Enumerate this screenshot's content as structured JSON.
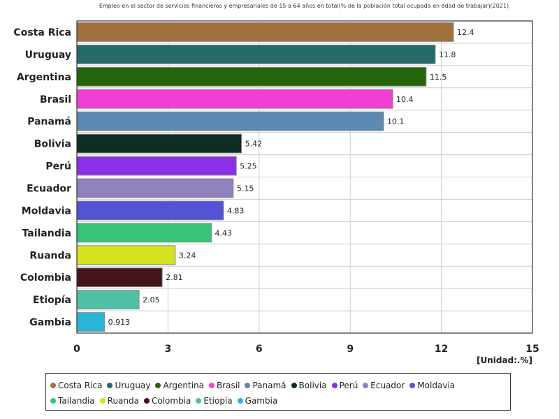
{
  "chart_data": {
    "type": "bar",
    "orientation": "horizontal",
    "title": "Empleo en el sector de servicios financieros y empresariales de 15 a 64 años en total(% de la población total ocupada en edad de trabajar)(2021)",
    "unit": "[Unidad:.%]",
    "xlim": [
      0,
      15
    ],
    "xticks": [
      "0",
      "3",
      "6",
      "9",
      "12",
      "15"
    ],
    "grid": true,
    "legend_position": "bottom",
    "categories": [
      "Costa Rica",
      "Uruguay",
      "Argentina",
      "Brasil",
      "Panamá",
      "Bolivia",
      "Perú",
      "Ecuador",
      "Moldavia",
      "Tailandia",
      "Ruanda",
      "Colombia",
      "Etiopía",
      "Gambia"
    ],
    "values": [
      12.4,
      11.8,
      11.5,
      10.4,
      10.1,
      5.42,
      5.25,
      5.15,
      4.83,
      4.43,
      3.24,
      2.81,
      2.05,
      0.913
    ],
    "value_labels": [
      "12.4",
      "11.8",
      "11.5",
      "10.4",
      "10.1",
      "5.42",
      "5.25",
      "5.15",
      "4.83",
      "4.43",
      "3.24",
      "2.81",
      "2.05",
      "0.913"
    ],
    "colors": [
      "#a0703f",
      "#246a66",
      "#266409",
      "#f23fd3",
      "#5c8ab3",
      "#0e2e22",
      "#8b2fe8",
      "#9181bd",
      "#5353d6",
      "#36c578",
      "#d4e31d",
      "#451519",
      "#4fc1a6",
      "#28b5d8"
    ]
  }
}
